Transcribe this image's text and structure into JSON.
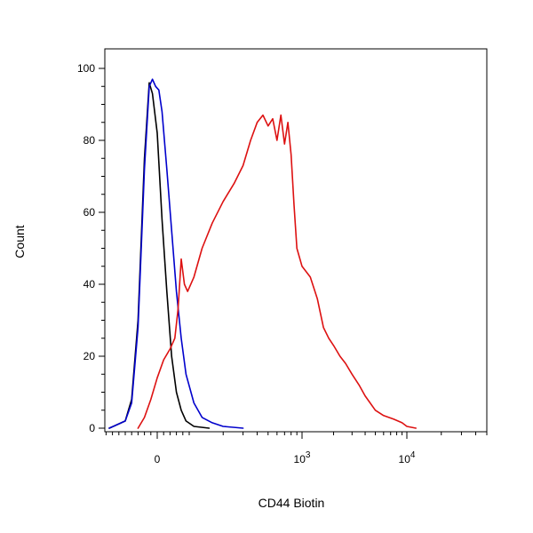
{
  "chart_data": {
    "type": "line",
    "title": "",
    "xlabel": "CD44 Biotin",
    "ylabel": "Count",
    "x_scale": "biexponential",
    "xlim": [
      -200,
      50000
    ],
    "ylim": [
      0,
      100
    ],
    "grid": false,
    "legend": "none",
    "y_ticks": [
      0,
      20,
      40,
      60,
      80,
      100
    ],
    "x_ticks": [
      {
        "value": 0,
        "label": "0"
      },
      {
        "value": 1000,
        "label": "10",
        "exponent": "3"
      },
      {
        "value": 10000,
        "label": "10",
        "exponent": "4"
      }
    ],
    "series": [
      {
        "color": "#000000",
        "points": [
          [
            -150,
            0
          ],
          [
            -100,
            2
          ],
          [
            -80,
            8
          ],
          [
            -60,
            30
          ],
          [
            -40,
            75
          ],
          [
            -25,
            96
          ],
          [
            -15,
            93
          ],
          [
            0,
            82
          ],
          [
            15,
            58
          ],
          [
            30,
            38
          ],
          [
            45,
            20
          ],
          [
            60,
            10
          ],
          [
            75,
            5
          ],
          [
            90,
            2
          ],
          [
            110,
            0.5
          ],
          [
            150,
            0
          ]
        ]
      },
      {
        "color": "#0000cc",
        "points": [
          [
            -150,
            0
          ],
          [
            -100,
            2
          ],
          [
            -80,
            7
          ],
          [
            -60,
            28
          ],
          [
            -40,
            72
          ],
          [
            -25,
            95
          ],
          [
            -15,
            97
          ],
          [
            -5,
            95
          ],
          [
            5,
            94
          ],
          [
            15,
            88
          ],
          [
            30,
            72
          ],
          [
            45,
            55
          ],
          [
            60,
            38
          ],
          [
            75,
            25
          ],
          [
            90,
            15
          ],
          [
            110,
            7
          ],
          [
            130,
            3
          ],
          [
            160,
            1.5
          ],
          [
            200,
            0.5
          ],
          [
            300,
            0
          ]
        ]
      },
      {
        "color": "#dd1111",
        "points": [
          [
            -60,
            0
          ],
          [
            -40,
            3
          ],
          [
            -20,
            8
          ],
          [
            0,
            14
          ],
          [
            20,
            19
          ],
          [
            40,
            22
          ],
          [
            55,
            25
          ],
          [
            65,
            33
          ],
          [
            75,
            47
          ],
          [
            85,
            40
          ],
          [
            95,
            38
          ],
          [
            110,
            42
          ],
          [
            130,
            50
          ],
          [
            160,
            57
          ],
          [
            200,
            63
          ],
          [
            250,
            68
          ],
          [
            300,
            73
          ],
          [
            350,
            80
          ],
          [
            400,
            85
          ],
          [
            450,
            87
          ],
          [
            500,
            84
          ],
          [
            550,
            86
          ],
          [
            600,
            80
          ],
          [
            650,
            87
          ],
          [
            700,
            79
          ],
          [
            750,
            85
          ],
          [
            800,
            76
          ],
          [
            850,
            62
          ],
          [
            900,
            50
          ],
          [
            1000,
            45
          ],
          [
            1200,
            42
          ],
          [
            1400,
            36
          ],
          [
            1600,
            28
          ],
          [
            1800,
            25
          ],
          [
            2000,
            23
          ],
          [
            2300,
            20
          ],
          [
            2600,
            18
          ],
          [
            3000,
            15
          ],
          [
            3500,
            12
          ],
          [
            4000,
            9
          ],
          [
            5000,
            5
          ],
          [
            6000,
            3.5
          ],
          [
            7500,
            2.5
          ],
          [
            9000,
            1.5
          ],
          [
            10000,
            0.5
          ],
          [
            12000,
            0
          ]
        ]
      }
    ]
  }
}
